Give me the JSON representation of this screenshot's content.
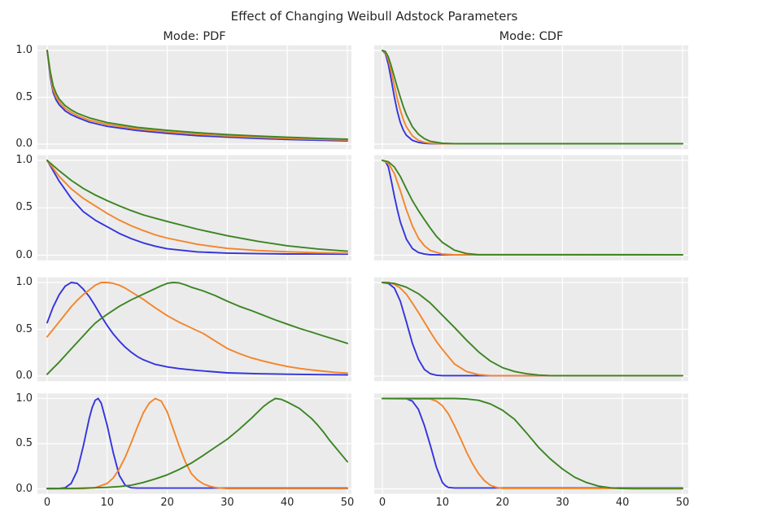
{
  "title": "Effect of Changing Weibull Adstock Parameters",
  "columns": [
    {
      "id": "pdf",
      "label": "Mode: PDF"
    },
    {
      "id": "cdf",
      "label": "Mode: CDF"
    }
  ],
  "axes": {
    "x_tick_labels": [
      "0",
      "10",
      "20",
      "30",
      "40",
      "50"
    ],
    "x_tick_values": [
      0,
      10,
      20,
      30,
      40,
      50
    ],
    "y_tick_labels": [
      "0.0",
      "0.5",
      "1.0"
    ],
    "y_tick_values": [
      0.0,
      0.5,
      1.0
    ],
    "xlim": [
      0,
      50
    ],
    "ylim": [
      0,
      1
    ],
    "grid": true
  },
  "style": {
    "plot_bg": "#ebebeb",
    "grid_color": "#ffffff",
    "figure_bg": "#ffffff",
    "text_color": "#262626",
    "series_colors": {
      "blue": "#3434dd",
      "orange": "#f3852a",
      "green": "#3c8523"
    }
  },
  "chart_data": [
    {
      "row": 1,
      "mode": "PDF",
      "type": "line",
      "series": [
        {
          "name": "blue",
          "color": "blue",
          "x": [
            0,
            0.5,
            1,
            1.5,
            2,
            3,
            4,
            5,
            7,
            10,
            15,
            20,
            25,
            30,
            35,
            40,
            45,
            50
          ],
          "y": [
            1.0,
            0.72,
            0.55,
            0.47,
            0.42,
            0.355,
            0.315,
            0.285,
            0.235,
            0.19,
            0.145,
            0.115,
            0.09,
            0.075,
            0.06,
            0.05,
            0.042,
            0.035
          ]
        },
        {
          "name": "orange",
          "color": "orange",
          "x": [
            0,
            0.5,
            1,
            1.5,
            2,
            3,
            4,
            5,
            7,
            10,
            15,
            20,
            25,
            30,
            35,
            40,
            45,
            50
          ],
          "y": [
            1.0,
            0.75,
            0.58,
            0.5,
            0.45,
            0.38,
            0.34,
            0.305,
            0.255,
            0.21,
            0.16,
            0.13,
            0.105,
            0.087,
            0.072,
            0.06,
            0.051,
            0.043
          ]
        },
        {
          "name": "green",
          "color": "green",
          "x": [
            0,
            0.5,
            1,
            1.5,
            2,
            3,
            4,
            5,
            7,
            10,
            15,
            20,
            25,
            30,
            35,
            40,
            45,
            50
          ],
          "y": [
            1.0,
            0.78,
            0.62,
            0.54,
            0.48,
            0.41,
            0.365,
            0.33,
            0.28,
            0.23,
            0.178,
            0.147,
            0.122,
            0.102,
            0.086,
            0.073,
            0.062,
            0.053
          ]
        }
      ]
    },
    {
      "row": 1,
      "mode": "CDF",
      "type": "line",
      "series": [
        {
          "name": "blue",
          "color": "blue",
          "x": [
            0,
            0.5,
            1,
            1.5,
            2,
            2.5,
            3,
            3.5,
            4,
            5,
            6,
            7,
            8,
            10,
            50
          ],
          "y": [
            1.0,
            0.97,
            0.85,
            0.68,
            0.5,
            0.35,
            0.23,
            0.15,
            0.095,
            0.04,
            0.018,
            0.009,
            0.005,
            0.004,
            0.004
          ]
        },
        {
          "name": "orange",
          "color": "orange",
          "x": [
            0,
            0.5,
            1,
            1.5,
            2,
            2.5,
            3,
            3.5,
            4,
            5,
            6,
            7,
            8,
            10,
            12,
            50
          ],
          "y": [
            1.0,
            0.98,
            0.9,
            0.77,
            0.62,
            0.48,
            0.36,
            0.26,
            0.185,
            0.088,
            0.04,
            0.019,
            0.009,
            0.004,
            0.004,
            0.004
          ]
        },
        {
          "name": "green",
          "color": "green",
          "x": [
            0,
            0.5,
            1,
            1.5,
            2,
            2.5,
            3,
            3.5,
            4,
            5,
            6,
            7,
            8,
            10,
            12,
            14,
            50
          ],
          "y": [
            1.0,
            0.99,
            0.93,
            0.83,
            0.715,
            0.605,
            0.5,
            0.4,
            0.315,
            0.185,
            0.105,
            0.057,
            0.03,
            0.009,
            0.005,
            0.004,
            0.004
          ]
        }
      ]
    },
    {
      "row": 2,
      "mode": "PDF",
      "type": "line",
      "series": [
        {
          "name": "blue",
          "color": "blue",
          "x": [
            0,
            2,
            4,
            6,
            8,
            10,
            12,
            14,
            16,
            18,
            20,
            25,
            30,
            35,
            40,
            45,
            50
          ],
          "y": [
            1.0,
            0.78,
            0.6,
            0.46,
            0.37,
            0.3,
            0.23,
            0.175,
            0.13,
            0.095,
            0.068,
            0.035,
            0.022,
            0.016,
            0.013,
            0.012,
            0.011
          ]
        },
        {
          "name": "orange",
          "color": "orange",
          "x": [
            0,
            2,
            4,
            6,
            8,
            10,
            12,
            14,
            16,
            18,
            20,
            25,
            30,
            35,
            40,
            45,
            50
          ],
          "y": [
            1.0,
            0.83,
            0.7,
            0.6,
            0.52,
            0.44,
            0.37,
            0.31,
            0.26,
            0.215,
            0.18,
            0.115,
            0.072,
            0.05,
            0.036,
            0.027,
            0.021
          ]
        },
        {
          "name": "green",
          "color": "green",
          "x": [
            0,
            2,
            4,
            6,
            8,
            10,
            12,
            14,
            16,
            18,
            20,
            25,
            30,
            35,
            40,
            45,
            50
          ],
          "y": [
            1.0,
            0.89,
            0.79,
            0.705,
            0.635,
            0.575,
            0.52,
            0.47,
            0.425,
            0.39,
            0.355,
            0.275,
            0.205,
            0.148,
            0.1,
            0.066,
            0.042
          ]
        }
      ]
    },
    {
      "row": 2,
      "mode": "CDF",
      "type": "line",
      "series": [
        {
          "name": "blue",
          "color": "blue",
          "x": [
            0,
            0.5,
            1,
            1.5,
            2,
            2.5,
            3,
            4,
            5,
            6,
            7,
            8,
            50
          ],
          "y": [
            1.0,
            0.99,
            0.93,
            0.78,
            0.62,
            0.48,
            0.35,
            0.17,
            0.07,
            0.028,
            0.012,
            0.005,
            0.005
          ]
        },
        {
          "name": "orange",
          "color": "orange",
          "x": [
            0,
            1,
            2,
            3,
            4,
            5,
            6,
            7,
            8,
            10,
            12,
            50
          ],
          "y": [
            1.0,
            0.97,
            0.86,
            0.68,
            0.48,
            0.31,
            0.18,
            0.1,
            0.05,
            0.012,
            0.005,
            0.005
          ]
        },
        {
          "name": "green",
          "color": "green",
          "x": [
            0,
            1,
            2,
            3,
            4,
            5,
            6,
            7,
            8,
            9,
            10,
            12,
            14,
            16,
            50
          ],
          "y": [
            1.0,
            0.985,
            0.93,
            0.83,
            0.7,
            0.575,
            0.47,
            0.375,
            0.285,
            0.2,
            0.135,
            0.053,
            0.018,
            0.006,
            0.005
          ]
        }
      ]
    },
    {
      "row": 3,
      "mode": "PDF",
      "type": "line",
      "series": [
        {
          "name": "blue",
          "color": "blue",
          "x": [
            0,
            1,
            2,
            3,
            4,
            5,
            6,
            7,
            8,
            9,
            10,
            11,
            12,
            13,
            14,
            15,
            16,
            18,
            20,
            22,
            25,
            30,
            35,
            40,
            45,
            50
          ],
          "y": [
            0.57,
            0.74,
            0.87,
            0.96,
            1.0,
            0.99,
            0.93,
            0.85,
            0.75,
            0.64,
            0.54,
            0.45,
            0.375,
            0.31,
            0.255,
            0.21,
            0.175,
            0.125,
            0.098,
            0.08,
            0.06,
            0.035,
            0.025,
            0.02,
            0.016,
            0.013
          ]
        },
        {
          "name": "orange",
          "color": "orange",
          "x": [
            0,
            1,
            2,
            3,
            4,
            5,
            6,
            7,
            8,
            9,
            10,
            11,
            12,
            13,
            14,
            16,
            18,
            20,
            22,
            24,
            26,
            28,
            30,
            32,
            34,
            36,
            38,
            40,
            42,
            44,
            46,
            48,
            50
          ],
          "y": [
            0.42,
            0.5,
            0.58,
            0.66,
            0.74,
            0.81,
            0.87,
            0.92,
            0.97,
            1.0,
            1.0,
            0.99,
            0.97,
            0.94,
            0.9,
            0.82,
            0.73,
            0.645,
            0.575,
            0.515,
            0.455,
            0.375,
            0.295,
            0.24,
            0.195,
            0.16,
            0.13,
            0.103,
            0.082,
            0.066,
            0.052,
            0.04,
            0.032
          ]
        },
        {
          "name": "green",
          "color": "green",
          "x": [
            0,
            1,
            2,
            3,
            4,
            5,
            6,
            7,
            8,
            9,
            10,
            12,
            14,
            16,
            18,
            19,
            20,
            21,
            22,
            23,
            24,
            26,
            28,
            30,
            32,
            34,
            36,
            38,
            40,
            42,
            44,
            46,
            48,
            50
          ],
          "y": [
            0.02,
            0.085,
            0.15,
            0.22,
            0.29,
            0.36,
            0.43,
            0.5,
            0.565,
            0.615,
            0.66,
            0.745,
            0.815,
            0.875,
            0.935,
            0.965,
            0.99,
            1.0,
            0.995,
            0.975,
            0.95,
            0.91,
            0.86,
            0.8,
            0.745,
            0.7,
            0.65,
            0.6,
            0.555,
            0.51,
            0.47,
            0.43,
            0.39,
            0.35
          ]
        }
      ]
    },
    {
      "row": 3,
      "mode": "CDF",
      "type": "line",
      "series": [
        {
          "name": "blue",
          "color": "blue",
          "x": [
            0,
            1,
            2,
            3,
            4,
            5,
            6,
            7,
            8,
            9,
            10,
            50
          ],
          "y": [
            1.0,
            0.99,
            0.94,
            0.8,
            0.58,
            0.35,
            0.18,
            0.07,
            0.025,
            0.01,
            0.005,
            0.005
          ]
        },
        {
          "name": "orange",
          "color": "orange",
          "x": [
            0,
            1,
            2,
            3,
            4,
            5,
            6,
            7,
            8,
            9,
            10,
            12,
            14,
            16,
            18,
            50
          ],
          "y": [
            1.0,
            1.0,
            0.98,
            0.94,
            0.875,
            0.78,
            0.68,
            0.575,
            0.47,
            0.37,
            0.285,
            0.13,
            0.05,
            0.016,
            0.005,
            0.005
          ]
        },
        {
          "name": "green",
          "color": "green",
          "x": [
            0,
            2,
            4,
            6,
            8,
            10,
            12,
            14,
            16,
            18,
            20,
            22,
            24,
            26,
            28,
            50
          ],
          "y": [
            1.0,
            0.99,
            0.95,
            0.88,
            0.78,
            0.65,
            0.52,
            0.385,
            0.26,
            0.16,
            0.09,
            0.05,
            0.025,
            0.011,
            0.005,
            0.005
          ]
        }
      ]
    },
    {
      "row": 4,
      "mode": "PDF",
      "type": "line",
      "series": [
        {
          "name": "blue",
          "color": "blue",
          "x": [
            0,
            2,
            3,
            4,
            5,
            6,
            7,
            7.5,
            8,
            8.5,
            9,
            10,
            11,
            12,
            13,
            14,
            15,
            50
          ],
          "y": [
            0.005,
            0.005,
            0.012,
            0.06,
            0.2,
            0.47,
            0.78,
            0.9,
            0.98,
            1.0,
            0.95,
            0.7,
            0.4,
            0.15,
            0.04,
            0.012,
            0.008,
            0.008
          ]
        },
        {
          "name": "orange",
          "color": "orange",
          "x": [
            0,
            6,
            8,
            10,
            11,
            12,
            13,
            14,
            15,
            16,
            17,
            18,
            19,
            20,
            21,
            22,
            23,
            24,
            25,
            26,
            27,
            28,
            29,
            30,
            50
          ],
          "y": [
            0.0,
            0.003,
            0.012,
            0.06,
            0.12,
            0.22,
            0.35,
            0.51,
            0.68,
            0.84,
            0.95,
            1.0,
            0.97,
            0.85,
            0.66,
            0.47,
            0.3,
            0.17,
            0.1,
            0.055,
            0.03,
            0.015,
            0.007,
            0.003,
            0.003
          ]
        },
        {
          "name": "green",
          "color": "green",
          "x": [
            0,
            5,
            10,
            12,
            14,
            16,
            18,
            20,
            22,
            24,
            26,
            28,
            30,
            32,
            34,
            36,
            37,
            38,
            39,
            40,
            42,
            44,
            45,
            46,
            47,
            48,
            49,
            50
          ],
          "y": [
            0.003,
            0.006,
            0.016,
            0.025,
            0.04,
            0.07,
            0.11,
            0.155,
            0.215,
            0.285,
            0.37,
            0.46,
            0.55,
            0.66,
            0.78,
            0.91,
            0.96,
            1.0,
            0.99,
            0.96,
            0.89,
            0.78,
            0.71,
            0.63,
            0.54,
            0.46,
            0.38,
            0.3
          ]
        }
      ]
    },
    {
      "row": 4,
      "mode": "CDF",
      "type": "line",
      "series": [
        {
          "name": "blue",
          "color": "blue",
          "x": [
            0,
            4,
            5,
            6,
            7,
            8,
            9,
            10,
            10.5,
            11,
            12,
            50
          ],
          "y": [
            1.0,
            0.998,
            0.97,
            0.88,
            0.7,
            0.48,
            0.24,
            0.07,
            0.035,
            0.015,
            0.01,
            0.01
          ]
        },
        {
          "name": "orange",
          "color": "orange",
          "x": [
            0,
            8,
            9,
            10,
            11,
            12,
            13,
            14,
            15,
            16,
            17,
            18,
            19,
            20,
            50
          ],
          "y": [
            1.0,
            0.995,
            0.97,
            0.92,
            0.83,
            0.7,
            0.56,
            0.41,
            0.28,
            0.17,
            0.09,
            0.04,
            0.016,
            0.005,
            0.005
          ]
        },
        {
          "name": "green",
          "color": "green",
          "x": [
            0,
            12,
            14,
            16,
            18,
            20,
            22,
            24,
            26,
            28,
            30,
            32,
            34,
            36,
            38,
            40,
            42,
            50
          ],
          "y": [
            1.0,
            1.0,
            0.995,
            0.98,
            0.94,
            0.87,
            0.77,
            0.62,
            0.46,
            0.33,
            0.22,
            0.13,
            0.07,
            0.03,
            0.012,
            0.004,
            0.002,
            0.002
          ]
        }
      ]
    }
  ]
}
